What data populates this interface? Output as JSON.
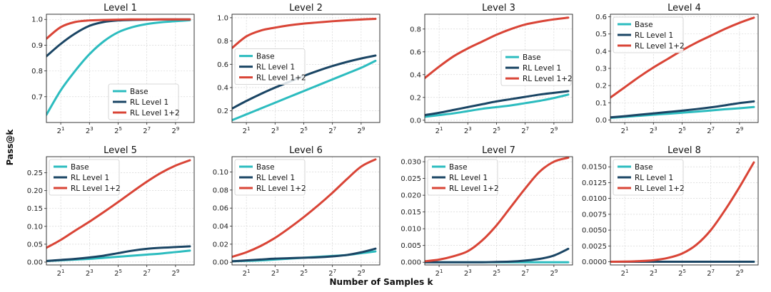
{
  "figure": {
    "ylabel": "Pass@k",
    "xlabel": "Number of Samples k",
    "colors": {
      "Base": "#2cbcbf",
      "RL Level 1": "#1a4564",
      "RL Level 1+2": "#d94436"
    }
  },
  "chart_data": [
    {
      "type": "line",
      "title": "Level 1",
      "legend_position": "lower-right",
      "xscale": "log2",
      "xlim": [
        0,
        10.3
      ],
      "ylim": [
        0.6,
        1.02
      ],
      "x_ticks": [
        1,
        3,
        5,
        7,
        9
      ],
      "x_tick_labels": [
        "2^1",
        "2^3",
        "2^5",
        "2^7",
        "2^9"
      ],
      "y_ticks": [
        0.7,
        0.8,
        0.9,
        1.0
      ],
      "y_tick_labels": [
        "0.7",
        "0.8",
        "0.9",
        "1.0"
      ],
      "x": [
        0,
        1,
        2,
        3,
        4,
        5,
        6,
        7,
        8,
        9,
        10
      ],
      "series": [
        {
          "name": "Base",
          "values": [
            0.63,
            0.725,
            0.8,
            0.865,
            0.915,
            0.95,
            0.97,
            0.982,
            0.989,
            0.993,
            0.997
          ]
        },
        {
          "name": "RL Level 1",
          "values": [
            0.857,
            0.905,
            0.945,
            0.975,
            0.99,
            0.996,
            0.998,
            0.999,
            1.0,
            1.0,
            1.0
          ]
        },
        {
          "name": "RL Level 1+2",
          "values": [
            0.925,
            0.97,
            0.99,
            0.996,
            0.998,
            0.999,
            1.0,
            1.0,
            1.0,
            1.0,
            1.0
          ]
        }
      ]
    },
    {
      "type": "line",
      "title": "Level 2",
      "legend_position": "center-left",
      "xscale": "log2",
      "xlim": [
        0,
        10.3
      ],
      "ylim": [
        0.1,
        1.03
      ],
      "x_ticks": [
        1,
        3,
        5,
        7,
        9
      ],
      "x_tick_labels": [
        "2^1",
        "2^3",
        "2^5",
        "2^7",
        "2^9"
      ],
      "y_ticks": [
        0.2,
        0.4,
        0.6,
        0.8,
        1.0
      ],
      "y_tick_labels": [
        "0.2",
        "0.4",
        "0.6",
        "0.8",
        "1.0"
      ],
      "x": [
        0,
        1,
        2,
        3,
        4,
        5,
        6,
        7,
        8,
        9,
        10
      ],
      "series": [
        {
          "name": "Base",
          "values": [
            0.12,
            0.17,
            0.22,
            0.27,
            0.32,
            0.37,
            0.42,
            0.47,
            0.52,
            0.57,
            0.63
          ]
        },
        {
          "name": "RL Level 1",
          "values": [
            0.22,
            0.285,
            0.345,
            0.4,
            0.45,
            0.5,
            0.545,
            0.585,
            0.62,
            0.65,
            0.675
          ]
        },
        {
          "name": "RL Level 1+2",
          "values": [
            0.74,
            0.84,
            0.89,
            0.915,
            0.935,
            0.95,
            0.96,
            0.97,
            0.978,
            0.985,
            0.99
          ]
        }
      ]
    },
    {
      "type": "line",
      "title": "Level 3",
      "legend_position": "center-right",
      "xscale": "log2",
      "xlim": [
        0,
        10.3
      ],
      "ylim": [
        -0.02,
        0.93
      ],
      "x_ticks": [
        1,
        3,
        5,
        7,
        9
      ],
      "x_tick_labels": [
        "2^1",
        "2^3",
        "2^5",
        "2^7",
        "2^9"
      ],
      "y_ticks": [
        0.0,
        0.2,
        0.4,
        0.6,
        0.8
      ],
      "y_tick_labels": [
        "0.0",
        "0.2",
        "0.4",
        "0.6",
        "0.8"
      ],
      "x": [
        0,
        1,
        2,
        3,
        4,
        5,
        6,
        7,
        8,
        9,
        10
      ],
      "series": [
        {
          "name": "Base",
          "values": [
            0.03,
            0.045,
            0.06,
            0.08,
            0.1,
            0.115,
            0.13,
            0.15,
            0.17,
            0.195,
            0.225
          ]
        },
        {
          "name": "RL Level 1",
          "values": [
            0.045,
            0.065,
            0.09,
            0.115,
            0.14,
            0.165,
            0.185,
            0.205,
            0.225,
            0.24,
            0.255
          ]
        },
        {
          "name": "RL Level 1+2",
          "values": [
            0.37,
            0.47,
            0.56,
            0.63,
            0.69,
            0.75,
            0.8,
            0.84,
            0.865,
            0.885,
            0.9
          ]
        }
      ]
    },
    {
      "type": "line",
      "title": "Level 4",
      "legend_position": "top-left",
      "xscale": "log2",
      "xlim": [
        0,
        10.3
      ],
      "ylim": [
        -0.015,
        0.615
      ],
      "x_ticks": [
        1,
        3,
        5,
        7,
        9
      ],
      "x_tick_labels": [
        "2^1",
        "2^3",
        "2^5",
        "2^7",
        "2^9"
      ],
      "y_ticks": [
        0.0,
        0.1,
        0.2,
        0.3,
        0.4,
        0.5,
        0.6
      ],
      "y_tick_labels": [
        "0.0",
        "0.1",
        "0.2",
        "0.3",
        "0.4",
        "0.5",
        "0.6"
      ],
      "x": [
        0,
        1,
        2,
        3,
        4,
        5,
        6,
        7,
        8,
        9,
        10
      ],
      "series": [
        {
          "name": "Base",
          "values": [
            0.012,
            0.018,
            0.024,
            0.03,
            0.036,
            0.042,
            0.048,
            0.055,
            0.062,
            0.068,
            0.075
          ]
        },
        {
          "name": "RL Level 1",
          "values": [
            0.015,
            0.022,
            0.03,
            0.038,
            0.046,
            0.054,
            0.063,
            0.073,
            0.085,
            0.098,
            0.108
          ]
        },
        {
          "name": "RL Level 1+2",
          "values": [
            0.13,
            0.19,
            0.25,
            0.305,
            0.355,
            0.405,
            0.45,
            0.49,
            0.53,
            0.565,
            0.595
          ]
        }
      ]
    },
    {
      "type": "line",
      "title": "Level 5",
      "legend_position": "top-left",
      "xscale": "log2",
      "xlim": [
        0,
        10.3
      ],
      "ylim": [
        -0.008,
        0.295
      ],
      "x_ticks": [
        1,
        3,
        5,
        7,
        9
      ],
      "x_tick_labels": [
        "2^1",
        "2^3",
        "2^5",
        "2^7",
        "2^9"
      ],
      "y_ticks": [
        0.0,
        0.05,
        0.1,
        0.15,
        0.2,
        0.25
      ],
      "y_tick_labels": [
        "0.00",
        "0.05",
        "0.10",
        "0.15",
        "0.20",
        "0.25"
      ],
      "x": [
        0,
        1,
        2,
        3,
        4,
        5,
        6,
        7,
        8,
        9,
        10
      ],
      "series": [
        {
          "name": "Base",
          "values": [
            0.003,
            0.005,
            0.007,
            0.009,
            0.012,
            0.015,
            0.018,
            0.021,
            0.024,
            0.028,
            0.032
          ]
        },
        {
          "name": "RL Level 1",
          "values": [
            0.003,
            0.006,
            0.009,
            0.013,
            0.018,
            0.025,
            0.032,
            0.037,
            0.04,
            0.042,
            0.044
          ]
        },
        {
          "name": "RL Level 1+2",
          "values": [
            0.04,
            0.062,
            0.088,
            0.113,
            0.14,
            0.168,
            0.197,
            0.225,
            0.25,
            0.27,
            0.285
          ]
        }
      ]
    },
    {
      "type": "line",
      "title": "Level 6",
      "legend_position": "top-left",
      "xscale": "log2",
      "xlim": [
        0,
        10.3
      ],
      "ylim": [
        -0.003,
        0.117
      ],
      "x_ticks": [
        1,
        3,
        5,
        7,
        9
      ],
      "x_tick_labels": [
        "2^1",
        "2^3",
        "2^5",
        "2^7",
        "2^9"
      ],
      "y_ticks": [
        0.0,
        0.02,
        0.04,
        0.06,
        0.08,
        0.1
      ],
      "y_tick_labels": [
        "0.00",
        "0.02",
        "0.04",
        "0.06",
        "0.08",
        "0.10"
      ],
      "x": [
        0,
        1,
        2,
        3,
        4,
        5,
        6,
        7,
        8,
        9,
        10
      ],
      "series": [
        {
          "name": "Base",
          "values": [
            0.001,
            0.0015,
            0.002,
            0.003,
            0.004,
            0.005,
            0.006,
            0.007,
            0.008,
            0.01,
            0.012
          ]
        },
        {
          "name": "RL Level 1",
          "values": [
            0.001,
            0.002,
            0.003,
            0.004,
            0.0045,
            0.005,
            0.0055,
            0.0065,
            0.008,
            0.011,
            0.015
          ]
        },
        {
          "name": "RL Level 1+2",
          "values": [
            0.006,
            0.011,
            0.018,
            0.027,
            0.038,
            0.05,
            0.063,
            0.077,
            0.092,
            0.106,
            0.114
          ]
        }
      ]
    },
    {
      "type": "line",
      "title": "Level 7",
      "legend_position": "top-left",
      "xscale": "log2",
      "xlim": [
        0,
        10.3
      ],
      "ylim": [
        -0.0008,
        0.0315
      ],
      "x_ticks": [
        1,
        3,
        5,
        7,
        9
      ],
      "x_tick_labels": [
        "2^1",
        "2^3",
        "2^5",
        "2^7",
        "2^9"
      ],
      "y_ticks": [
        0.0,
        0.005,
        0.01,
        0.015,
        0.02,
        0.025,
        0.03
      ],
      "y_tick_labels": [
        "0.000",
        "0.005",
        "0.010",
        "0.015",
        "0.020",
        "0.025",
        "0.030"
      ],
      "x": [
        0,
        1,
        2,
        3,
        4,
        5,
        6,
        7,
        8,
        9,
        10
      ],
      "series": [
        {
          "name": "Base",
          "values": [
            0,
            0,
            0,
            0,
            0,
            0,
            0,
            0,
            0,
            0,
            0
          ]
        },
        {
          "name": "RL Level 1",
          "values": [
            0,
            0,
            0,
            0,
            0,
            0.0001,
            0.0002,
            0.0005,
            0.001,
            0.002,
            0.004
          ]
        },
        {
          "name": "RL Level 1+2",
          "values": [
            0.0003,
            0.0008,
            0.0018,
            0.0033,
            0.0065,
            0.011,
            0.0165,
            0.022,
            0.027,
            0.03,
            0.0312
          ]
        }
      ]
    },
    {
      "type": "line",
      "title": "Level 8",
      "legend_position": "top-left",
      "xscale": "log2",
      "xlim": [
        0,
        10.3
      ],
      "ylim": [
        -0.0005,
        0.0166
      ],
      "x_ticks": [
        1,
        3,
        5,
        7,
        9
      ],
      "x_tick_labels": [
        "2^1",
        "2^3",
        "2^5",
        "2^7",
        "2^9"
      ],
      "y_ticks": [
        0.0,
        0.0025,
        0.005,
        0.0075,
        0.01,
        0.0125,
        0.015
      ],
      "y_tick_labels": [
        "0.0000",
        "0.0025",
        "0.0050",
        "0.0075",
        "0.0100",
        "0.0125",
        "0.0150"
      ],
      "x": [
        0,
        1,
        2,
        3,
        4,
        5,
        6,
        7,
        8,
        9,
        10
      ],
      "series": [
        {
          "name": "Base",
          "values": [
            0,
            0,
            0,
            0,
            0,
            0,
            0,
            0,
            0,
            0,
            0
          ]
        },
        {
          "name": "RL Level 1",
          "values": [
            0,
            0,
            0,
            0,
            0,
            0,
            0,
            0,
            0,
            0,
            0
          ]
        },
        {
          "name": "RL Level 1+2",
          "values": [
            0,
            3e-05,
            0.0001,
            0.00025,
            0.0006,
            0.0013,
            0.0027,
            0.005,
            0.0082,
            0.0118,
            0.0157
          ]
        }
      ]
    }
  ]
}
